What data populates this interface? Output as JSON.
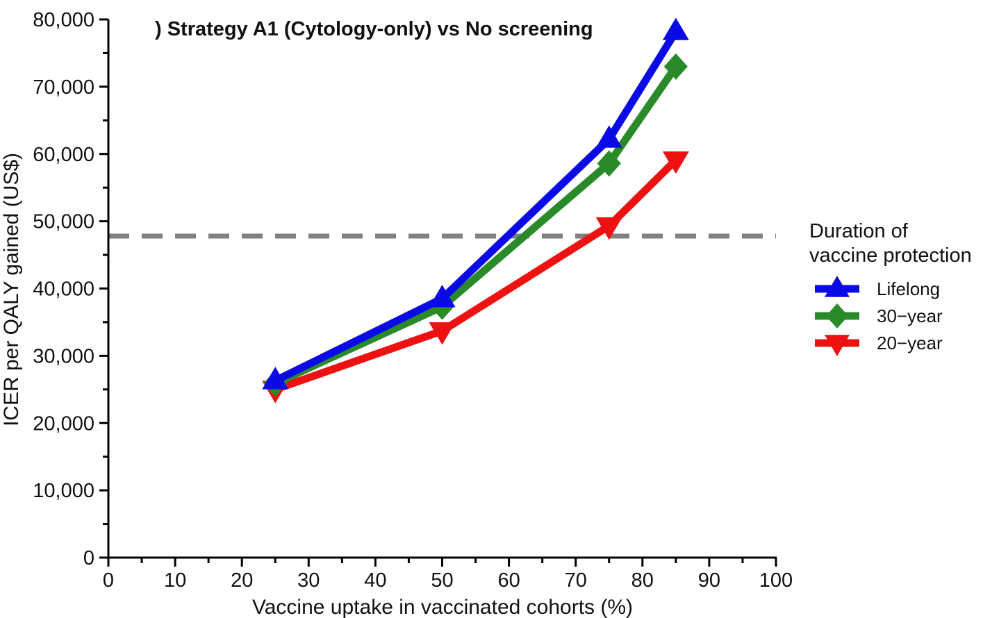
{
  "chart_data": {
    "type": "line",
    "title": ") Strategy A1 (Cytology-only) vs No screening",
    "xlabel": "Vaccine uptake in vaccinated cohorts (%)",
    "ylabel": "ICER per QALY gained (US$)",
    "xlim": [
      0,
      100
    ],
    "ylim": [
      0,
      80000
    ],
    "x_ticks": [
      0,
      10,
      20,
      30,
      40,
      50,
      60,
      70,
      80,
      90,
      100
    ],
    "x_tick_labels": [
      "0",
      "10",
      "20",
      "30",
      "40",
      "50",
      "60",
      "70",
      "80",
      "90",
      "100"
    ],
    "y_ticks": [
      0,
      10000,
      20000,
      30000,
      40000,
      50000,
      60000,
      70000,
      80000
    ],
    "y_tick_labels": [
      "0",
      "10,000",
      "20,000",
      "30,000",
      "40,000",
      "50,000",
      "60,000",
      "70,000",
      "80,000"
    ],
    "grid": false,
    "reference_line": {
      "y": 47800,
      "style": "dashed",
      "color": "#808080"
    },
    "legend": {
      "title_lines": [
        "Duration of",
        "vaccine protection"
      ],
      "placement": "right"
    },
    "x": [
      25,
      50,
      75,
      85
    ],
    "series": [
      {
        "name": "Lifelong",
        "values": [
          26300,
          38500,
          62200,
          78200
        ],
        "color": "#0a0ae6",
        "marker": "triangle-up"
      },
      {
        "name": "30−year",
        "values": [
          25900,
          37300,
          58600,
          73000
        ],
        "color": "#2a8a2a",
        "marker": "diamond"
      },
      {
        "name": "20−year",
        "values": [
          25000,
          33700,
          49300,
          59100
        ],
        "color": "#ee1111",
        "marker": "triangle-down"
      }
    ]
  }
}
